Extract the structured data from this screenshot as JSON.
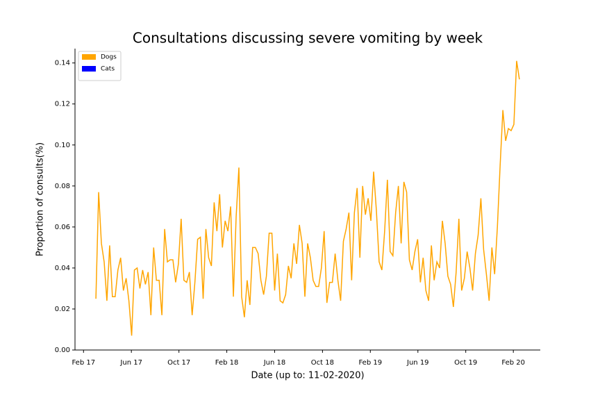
{
  "chart_data": {
    "type": "line",
    "title": "Consultations discussing severe vomiting by week",
    "xlabel": "Date (up to: 11-02-2020)",
    "ylabel": "Proportion of consults(%)",
    "x": [
      0,
      1,
      2,
      3,
      4,
      5,
      6,
      7,
      8,
      9,
      10,
      11,
      12,
      13,
      14,
      15,
      16,
      17,
      18,
      19,
      20,
      21,
      22,
      23,
      24,
      25,
      26,
      27,
      28,
      29,
      30,
      31,
      32,
      33,
      34,
      35,
      36,
      37,
      38,
      39,
      40,
      41,
      42,
      43,
      44,
      45,
      46,
      47,
      48,
      49,
      50,
      51,
      52,
      53,
      54,
      55,
      56,
      57,
      58,
      59,
      60,
      61,
      62,
      63,
      64,
      65,
      66,
      67,
      68,
      69,
      70,
      71,
      72,
      73,
      74,
      75,
      76,
      77,
      78,
      79,
      80,
      81,
      82,
      83,
      84,
      85,
      86,
      87,
      88,
      89,
      90,
      91,
      92,
      93,
      94,
      95,
      96,
      97,
      98,
      99,
      100,
      101,
      102,
      103,
      104,
      105,
      106,
      107,
      108,
      109,
      110,
      111,
      112,
      113,
      114,
      115,
      116,
      117,
      118,
      119,
      120,
      121,
      122,
      123,
      124,
      125,
      126,
      127,
      128,
      129,
      130,
      131,
      132,
      133,
      134,
      135,
      136,
      137,
      138,
      139,
      140,
      141,
      142,
      143,
      144,
      145,
      146,
      147,
      148,
      149,
      150,
      151,
      152,
      153,
      154
    ],
    "series": [
      {
        "name": "Dogs",
        "color": "#ffa500",
        "values": [
          0.025,
          0.077,
          0.052,
          0.043,
          0.024,
          0.051,
          0.026,
          0.026,
          0.039,
          0.045,
          0.029,
          0.035,
          0.024,
          0.007,
          0.039,
          0.04,
          0.03,
          0.039,
          0.032,
          0.038,
          0.017,
          0.05,
          0.034,
          0.034,
          0.017,
          0.059,
          0.043,
          0.044,
          0.044,
          0.033,
          0.042,
          0.064,
          0.034,
          0.033,
          0.038,
          0.017,
          0.033,
          0.054,
          0.055,
          0.025,
          0.059,
          0.045,
          0.041,
          0.072,
          0.058,
          0.076,
          0.05,
          0.063,
          0.058,
          0.07,
          0.026,
          0.065,
          0.089,
          0.026,
          0.016,
          0.034,
          0.022,
          0.05,
          0.05,
          0.047,
          0.034,
          0.027,
          0.036,
          0.057,
          0.057,
          0.029,
          0.047,
          0.024,
          0.023,
          0.027,
          0.041,
          0.035,
          0.052,
          0.042,
          0.061,
          0.052,
          0.026,
          0.052,
          0.045,
          0.034,
          0.031,
          0.031,
          0.04,
          0.058,
          0.023,
          0.033,
          0.033,
          0.047,
          0.034,
          0.024,
          0.053,
          0.059,
          0.067,
          0.034,
          0.067,
          0.079,
          0.045,
          0.08,
          0.066,
          0.074,
          0.063,
          0.087,
          0.068,
          0.043,
          0.039,
          0.058,
          0.083,
          0.048,
          0.046,
          0.067,
          0.08,
          0.052,
          0.082,
          0.077,
          0.044,
          0.039,
          0.048,
          0.054,
          0.033,
          0.045,
          0.029,
          0.024,
          0.051,
          0.034,
          0.043,
          0.04,
          0.063,
          0.052,
          0.036,
          0.032,
          0.021,
          0.038,
          0.064,
          0.029,
          0.035,
          0.048,
          0.04,
          0.029,
          0.047,
          0.056,
          0.074,
          0.049,
          0.037,
          0.024,
          0.05,
          0.037,
          0.06,
          0.09,
          0.117,
          0.102,
          0.108,
          0.107,
          0.11,
          0.141,
          0.132
        ]
      },
      {
        "name": "Cats",
        "color": "#0000ff"
      }
    ],
    "xlim": [
      -7.6,
      161.6
    ],
    "xticks": [
      {
        "value": -4.5,
        "label": "Feb 17"
      },
      {
        "value": 12.9,
        "label": "Jun 17"
      },
      {
        "value": 30.2,
        "label": "Oct 17"
      },
      {
        "value": 47.6,
        "label": "Feb 18"
      },
      {
        "value": 65.0,
        "label": "Jun 18"
      },
      {
        "value": 82.4,
        "label": "Oct 18"
      },
      {
        "value": 99.8,
        "label": "Feb 19"
      },
      {
        "value": 117.1,
        "label": "Jun 19"
      },
      {
        "value": 134.5,
        "label": "Oct 19"
      },
      {
        "value": 151.8,
        "label": "Feb 20"
      }
    ],
    "ylim": [
      0,
      0.147
    ],
    "yticks": [
      {
        "value": 0,
        "label": "0.00"
      },
      0.02,
      0.04,
      0.06,
      0.08,
      {
        "value": 0.1,
        "label": "0.10"
      },
      0.12,
      0.14
    ],
    "legend": "upper left"
  }
}
